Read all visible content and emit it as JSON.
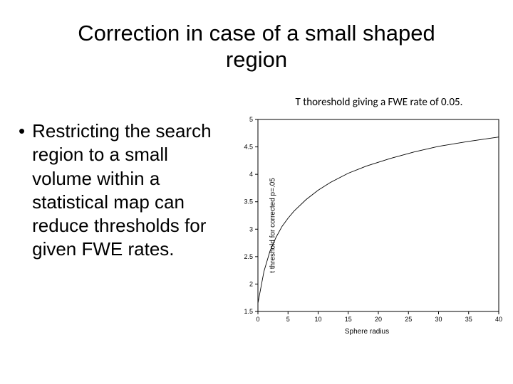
{
  "slide": {
    "title_line1": "Correction in case of a small shaped",
    "title_line2": "region",
    "bullet": "Restricting the search region to a small volume within a statistical map can reduce thresholds for given FWE rates.",
    "chart_caption": "T thoreshold giving a FWE rate of 0.05."
  },
  "chart": {
    "type": "line",
    "xlabel": "Sphere radius",
    "ylabel": "t threshold for corrected p=.05",
    "xlim": [
      0,
      40
    ],
    "ylim": [
      1.5,
      5
    ],
    "xticks": [
      0,
      5,
      10,
      15,
      20,
      25,
      30,
      35,
      40
    ],
    "yticks": [
      1.5,
      2,
      2.5,
      3,
      3.5,
      4,
      4.5,
      5
    ],
    "line_color": "#000000",
    "line_width": 0.9,
    "axis_color": "#000000",
    "background_color": "#ffffff",
    "tick_fontsize": 9,
    "label_fontsize": 10,
    "series": {
      "x": [
        0,
        1,
        2,
        3,
        4,
        5,
        6,
        8,
        10,
        12,
        15,
        18,
        22,
        26,
        30,
        35,
        40
      ],
      "y": [
        1.65,
        2.23,
        2.6,
        2.85,
        3.05,
        3.2,
        3.33,
        3.54,
        3.71,
        3.85,
        4.02,
        4.15,
        4.29,
        4.41,
        4.51,
        4.6,
        4.68
      ]
    }
  }
}
